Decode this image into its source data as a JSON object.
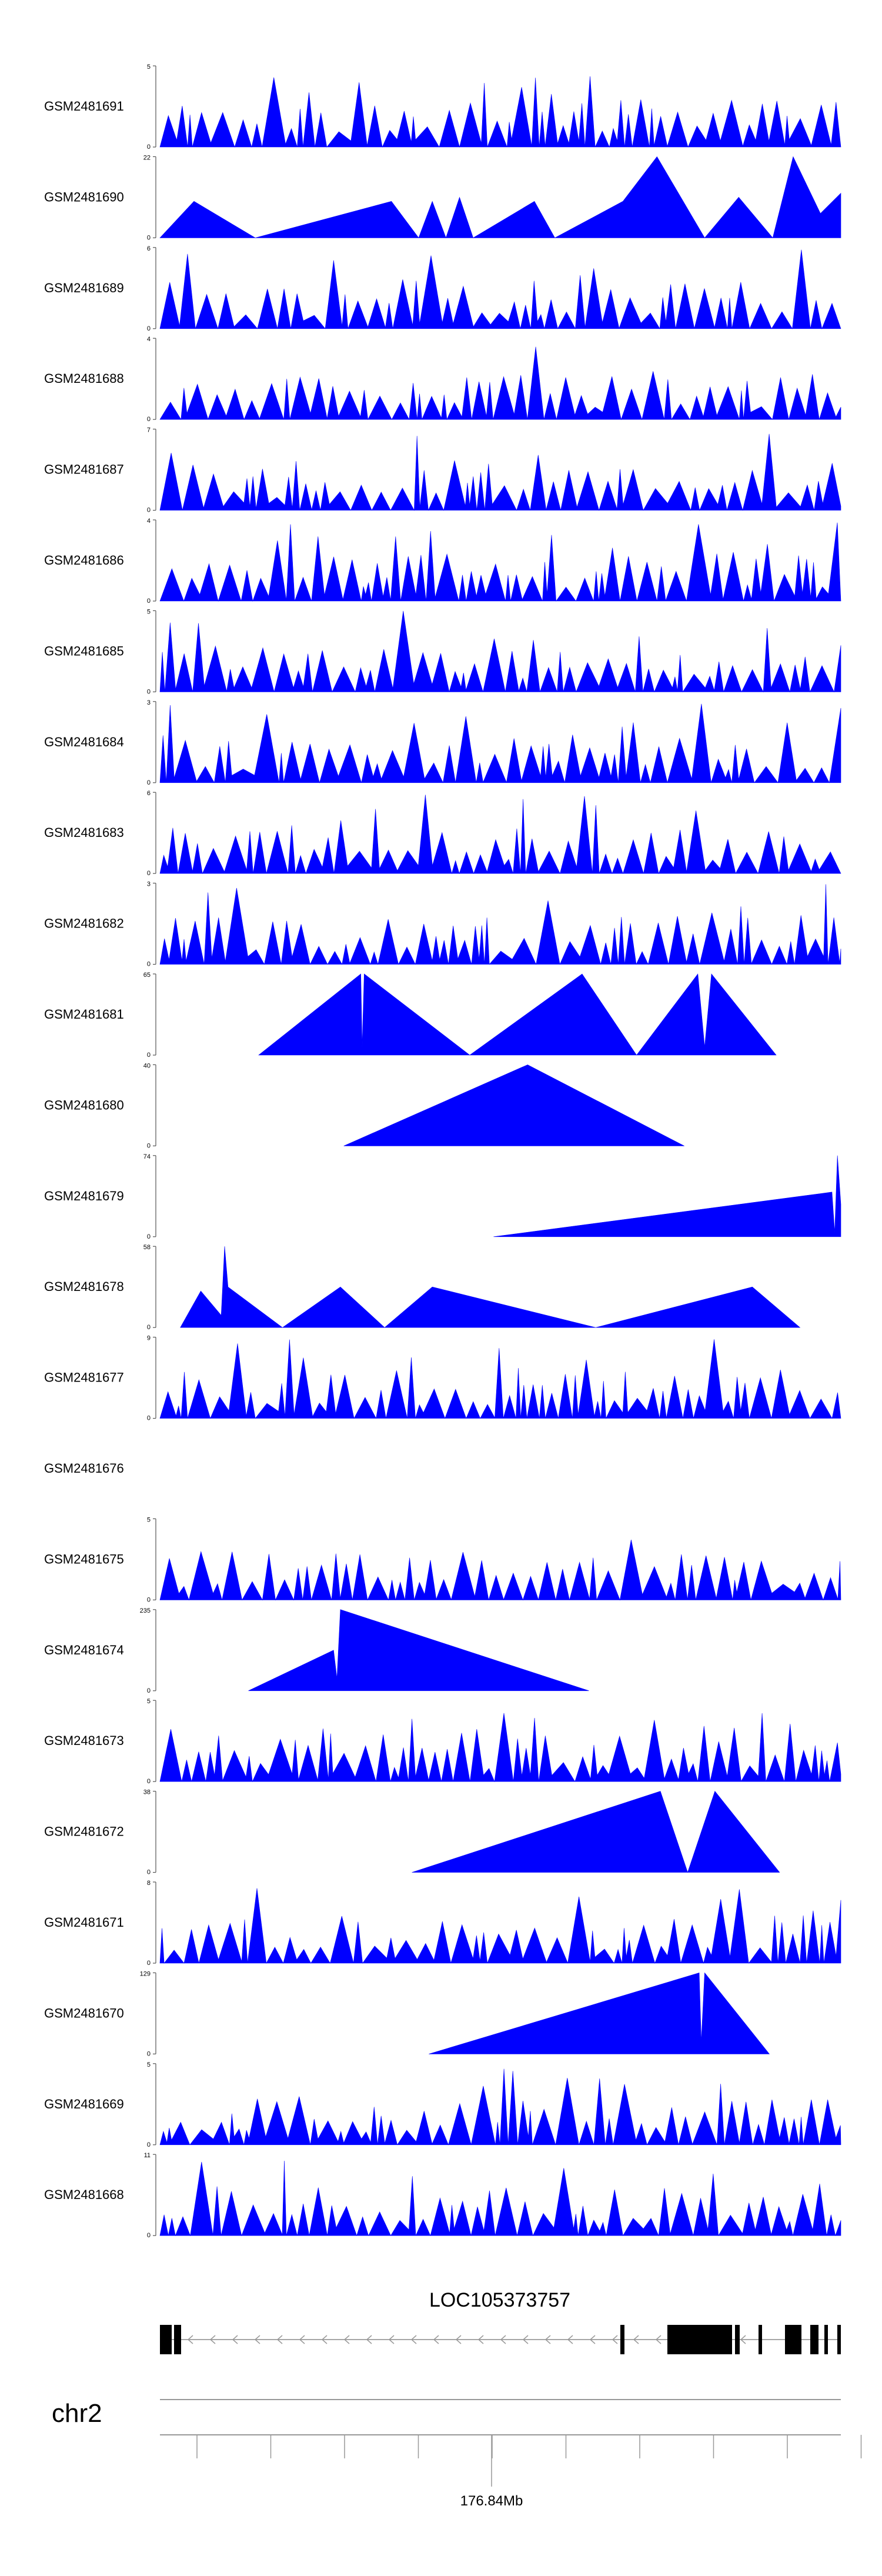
{
  "chart_data": {
    "type": "area",
    "description_title": "",
    "fill_color": "#0000ff",
    "tracks": [
      {
        "name": "GSM2481691",
        "ymax": 5
      },
      {
        "name": "GSM2481690",
        "ymax": 22
      },
      {
        "name": "GSM2481689",
        "ymax": 6
      },
      {
        "name": "GSM2481688",
        "ymax": 4
      },
      {
        "name": "GSM2481687",
        "ymax": 7
      },
      {
        "name": "GSM2481686",
        "ymax": 4
      },
      {
        "name": "GSM2481685",
        "ymax": 5
      },
      {
        "name": "GSM2481684",
        "ymax": 3
      },
      {
        "name": "GSM2481683",
        "ymax": 6
      },
      {
        "name": "GSM2481682",
        "ymax": 3
      },
      {
        "name": "GSM2481681",
        "ymax": 65
      },
      {
        "name": "GSM2481680",
        "ymax": 40
      },
      {
        "name": "GSM2481679",
        "ymax": 74
      },
      {
        "name": "GSM2481678",
        "ymax": 58
      },
      {
        "name": "GSM2481677",
        "ymax": 9
      },
      {
        "name": "GSM2481676",
        "ymax": null
      },
      {
        "name": "GSM2481675",
        "ymax": 5
      },
      {
        "name": "GSM2481674",
        "ymax": 235
      },
      {
        "name": "GSM2481673",
        "ymax": 5
      },
      {
        "name": "GSM2481672",
        "ymax": 38
      },
      {
        "name": "GSM2481671",
        "ymax": 8
      },
      {
        "name": "GSM2481670",
        "ymax": 129
      },
      {
        "name": "GSM2481669",
        "ymax": 5
      },
      {
        "name": "GSM2481668",
        "ymax": 11
      }
    ],
    "gene": {
      "name": "LOC105373757",
      "strand": "-"
    },
    "chromosome": "chr2",
    "axis_label": "176.84Mb"
  }
}
